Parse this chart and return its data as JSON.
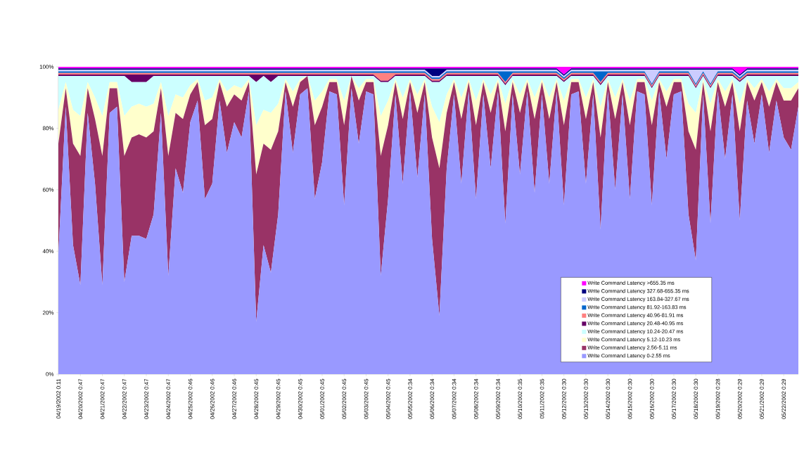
{
  "chart_data": {
    "type": "area",
    "stacked": true,
    "legend": "bottom right",
    "grid": false,
    "categories": [
      "04/19/2002 0:11",
      null,
      null,
      "04/20/2002 0:47",
      null,
      null,
      "04/21/2002 0:47",
      null,
      null,
      "04/22/2002 0:47",
      null,
      null,
      "04/23/2002 0:47",
      null,
      null,
      "04/24/2002 0:47",
      null,
      null,
      "04/25/2002 0:46",
      null,
      null,
      "04/26/2002 0:46",
      null,
      null,
      "04/27/2002 0:46",
      null,
      null,
      "04/28/2002 0:45",
      null,
      null,
      "04/29/2002 0:45",
      null,
      null,
      "04/30/2002 0:45",
      null,
      null,
      "05/01/2002 0:45",
      null,
      null,
      "05/02/2002 0:45",
      null,
      null,
      "05/03/2002 0:45",
      null,
      null,
      "05/04/2002 0:45",
      null,
      null,
      "05/05/2002 0:34",
      null,
      null,
      "05/06/2002 0:34",
      null,
      null,
      "05/07/2002 0:34",
      null,
      null,
      "05/08/2002 0:34",
      null,
      null,
      "05/09/2002 0:34",
      null,
      null,
      "05/10/2002 0:35",
      null,
      null,
      "05/11/2002 0:35",
      null,
      null,
      "05/12/2002 0:30",
      null,
      null,
      "05/13/2002 0:30",
      null,
      null,
      "05/14/2002 0:30",
      null,
      null,
      "05/15/2002 0:30",
      null,
      null,
      "05/16/2002 0:30",
      null,
      null,
      "05/17/2002 0:30",
      null,
      null,
      "05/18/2002 0:30",
      null,
      null,
      "05/19/2002 0:28",
      null,
      null,
      "05/20/2002 0:29",
      null,
      null,
      "05/21/2002 0:29",
      null,
      null,
      "05/22/2002 0:29",
      null,
      null
    ],
    "ylim": [
      0,
      100
    ],
    "yticks": [
      {
        "value": 0,
        "label": "0%"
      },
      {
        "value": 20,
        "label": "20%"
      },
      {
        "value": 40,
        "label": "40%"
      },
      {
        "value": 60,
        "label": "60%"
      },
      {
        "value": 80,
        "label": "80%"
      },
      {
        "value": 100,
        "label": "100%"
      }
    ],
    "series": [
      {
        "name": "Write Command Latency 0-2.55 ms",
        "color": "#9999ff",
        "values": [
          39,
          87,
          42,
          29,
          85,
          62,
          29,
          85,
          87,
          30,
          45,
          45,
          44,
          52,
          85,
          32,
          67,
          59,
          82,
          89,
          57,
          62,
          89,
          72,
          82,
          77,
          92,
          17,
          42,
          33,
          52,
          92,
          72,
          91,
          93,
          57,
          69,
          92,
          91,
          55,
          93,
          75,
          92,
          91,
          32,
          57,
          91,
          62,
          92,
          64,
          91,
          44,
          19,
          67,
          91,
          62,
          92,
          57,
          91,
          67,
          92,
          49,
          91,
          65,
          92,
          59,
          91,
          62,
          92,
          55,
          91,
          92,
          62,
          91,
          47,
          92,
          60,
          91,
          57,
          92,
          91,
          55,
          92,
          70,
          91,
          92,
          52,
          37,
          91,
          49,
          92,
          70,
          91,
          50,
          89,
          75,
          91,
          72,
          89,
          77,
          73,
          87
        ]
      },
      {
        "name": "Write Command Latency 2.56-5.11 ms",
        "color": "#993366",
        "values": [
          36,
          6,
          33,
          42,
          8,
          21,
          42,
          8,
          6,
          41,
          32,
          33,
          33,
          27,
          8,
          39,
          18,
          24,
          9,
          6,
          24,
          21,
          6,
          15,
          9,
          12,
          3,
          48,
          33,
          40,
          27,
          3,
          15,
          4,
          4,
          24,
          18,
          3,
          4,
          26,
          4,
          14,
          3,
          4,
          39,
          24,
          4,
          21,
          3,
          21,
          4,
          33,
          48,
          18,
          4,
          21,
          3,
          24,
          4,
          18,
          3,
          30,
          4,
          20,
          3,
          24,
          4,
          21,
          3,
          26,
          4,
          3,
          21,
          4,
          30,
          3,
          23,
          4,
          24,
          3,
          4,
          26,
          3,
          17,
          4,
          3,
          27,
          36,
          4,
          30,
          3,
          17,
          4,
          29,
          6,
          14,
          4,
          15,
          6,
          12,
          16,
          6
        ]
      },
      {
        "name": "Write Command Latency 5.12-10.23 ms",
        "color": "#ffffcc",
        "values": [
          11,
          2,
          11,
          13,
          2,
          7,
          13,
          2,
          2,
          13,
          10,
          10,
          10,
          9,
          2,
          13,
          6,
          7,
          3,
          1,
          8,
          7,
          1,
          5,
          3,
          4,
          1,
          16,
          11,
          12,
          9,
          1,
          5,
          1,
          0,
          8,
          5,
          1,
          1,
          8,
          0,
          4,
          1,
          1,
          13,
          8,
          1,
          7,
          1,
          6,
          1,
          10,
          15,
          6,
          1,
          7,
          1,
          8,
          1,
          6,
          1,
          9,
          1,
          6,
          1,
          7,
          1,
          7,
          1,
          8,
          1,
          1,
          7,
          1,
          10,
          1,
          7,
          1,
          8,
          1,
          1,
          8,
          1,
          5,
          1,
          1,
          9,
          12,
          1,
          9,
          1,
          5,
          1,
          9,
          1,
          4,
          1,
          5,
          1,
          4,
          4,
          2
        ]
      },
      {
        "name": "Write Command Latency 10.24-20.47 ms",
        "color": "#ccffff",
        "values": [
          11,
          2,
          11,
          13,
          2,
          7,
          13,
          2,
          2,
          13,
          8,
          7,
          8,
          9,
          2,
          13,
          6,
          7,
          3,
          1,
          8,
          7,
          1,
          5,
          3,
          4,
          1,
          14,
          11,
          10,
          9,
          1,
          5,
          1,
          0,
          8,
          5,
          1,
          1,
          8,
          0,
          4,
          1,
          1,
          11,
          6,
          1,
          7,
          1,
          6,
          1,
          8,
          13,
          6,
          1,
          7,
          1,
          8,
          1,
          6,
          1,
          6,
          1,
          6,
          1,
          7,
          1,
          7,
          1,
          6,
          1,
          1,
          7,
          1,
          7,
          1,
          7,
          1,
          8,
          1,
          1,
          4,
          1,
          5,
          1,
          1,
          9,
          8,
          1,
          5,
          1,
          5,
          1,
          7,
          1,
          4,
          1,
          5,
          1,
          4,
          4,
          2
        ]
      },
      {
        "name": "Write Command Latency 20.48-40.95 ms",
        "color": "#660066",
        "values": [
          0.5,
          0.5,
          0.5,
          0.5,
          0.5,
          0.5,
          0.5,
          0.5,
          0.5,
          0.5,
          2.5,
          2.5,
          2.5,
          0.5,
          0.5,
          0.5,
          0.5,
          0.5,
          0.5,
          0.5,
          0.5,
          0.5,
          0.5,
          0.5,
          0.5,
          0.5,
          0.5,
          2.5,
          0.5,
          2.5,
          0.5,
          0.5,
          0.5,
          0.5,
          0.5,
          0.5,
          0.5,
          0.5,
          0.5,
          0.5,
          0.5,
          0.5,
          0.5,
          0.5,
          0.5,
          0.5,
          0.5,
          0.5,
          0.5,
          0.5,
          0.5,
          0.5,
          0.5,
          0.5,
          0.5,
          0.5,
          0.5,
          0.5,
          0.5,
          0.5,
          0.5,
          0.5,
          0.5,
          0.5,
          0.5,
          0.5,
          0.5,
          0.5,
          0.5,
          0.5,
          0.5,
          0.5,
          0.5,
          0.5,
          0.5,
          0.5,
          0.5,
          0.5,
          0.5,
          0.5,
          0.5,
          0.5,
          0.5,
          0.5,
          0.5,
          0.5,
          0.5,
          0.5,
          0.5,
          0.5,
          0.5,
          0.5,
          0.5,
          0.5,
          0.5,
          0.5,
          0.5,
          0.5,
          0.5,
          0.5,
          0.5,
          0.5
        ]
      },
      {
        "name": "Write Command Latency 40.96-81.91 ms",
        "color": "#ff8080",
        "values": [
          0.5,
          0.5,
          0.5,
          0.5,
          0.5,
          0.5,
          0.5,
          0.5,
          0.5,
          0.5,
          0.5,
          0.5,
          0.5,
          0.5,
          0.5,
          0.5,
          0.5,
          0.5,
          0.5,
          0.5,
          0.5,
          0.5,
          0.5,
          0.5,
          0.5,
          0.5,
          0.5,
          0.5,
          0.5,
          0.5,
          0.5,
          0.5,
          0.5,
          0.5,
          0.5,
          0.5,
          0.5,
          0.5,
          0.5,
          0.5,
          0.5,
          0.5,
          0.5,
          0.5,
          2.5,
          2.5,
          0.5,
          0.5,
          0.5,
          0.5,
          0.5,
          0.5,
          0.5,
          0.5,
          0.5,
          0.5,
          0.5,
          0.5,
          0.5,
          0.5,
          0.5,
          0.5,
          0.5,
          0.5,
          0.5,
          0.5,
          0.5,
          0.5,
          0.5,
          0.5,
          0.5,
          0.5,
          0.5,
          0.5,
          0.5,
          0.5,
          0.5,
          0.5,
          0.5,
          0.5,
          0.5,
          0.5,
          0.5,
          0.5,
          0.5,
          0.5,
          0.5,
          0.5,
          0.5,
          0.5,
          0.5,
          0.5,
          0.5,
          0.5,
          0.5,
          0.5,
          0.5,
          0.5,
          0.5,
          0.5,
          0.5,
          0.5
        ]
      },
      {
        "name": "Write Command Latency 81.92-163.83 ms",
        "color": "#0066cc",
        "values": [
          0.5,
          0.5,
          0.5,
          0.5,
          0.5,
          0.5,
          0.5,
          0.5,
          0.5,
          0.5,
          0.5,
          0.5,
          0.5,
          0.5,
          0.5,
          0.5,
          0.5,
          0.5,
          0.5,
          0.5,
          0.5,
          0.5,
          0.5,
          0.5,
          0.5,
          0.5,
          0.5,
          0.5,
          0.5,
          0.5,
          0.5,
          0.5,
          0.5,
          0.5,
          0.5,
          0.5,
          0.5,
          0.5,
          0.5,
          0.5,
          0.5,
          0.5,
          0.5,
          0.5,
          0.5,
          0.5,
          0.5,
          0.5,
          0.5,
          0.5,
          0.5,
          0.5,
          0.5,
          0.5,
          0.5,
          0.5,
          0.5,
          0.5,
          0.5,
          0.5,
          0.5,
          3.5,
          0.5,
          0.5,
          0.5,
          0.5,
          0.5,
          0.5,
          0.5,
          0.5,
          0.5,
          0.5,
          0.5,
          0.5,
          3.5,
          0.5,
          0.5,
          0.5,
          0.5,
          0.5,
          0.5,
          0.5,
          0.5,
          0.5,
          0.5,
          0.5,
          0.5,
          0.5,
          0.5,
          0.5,
          0.5,
          0.5,
          0.5,
          0.5,
          0.5,
          0.5,
          0.5,
          0.5,
          0.5,
          0.5,
          0.5,
          0.5
        ]
      },
      {
        "name": "Write Command Latency 163.84-327.67 ms",
        "color": "#ccccff",
        "values": [
          0.5,
          0.5,
          0.5,
          0.5,
          0.5,
          0.5,
          0.5,
          0.5,
          0.5,
          0.5,
          0.5,
          0.5,
          0.5,
          0.5,
          0.5,
          0.5,
          0.5,
          0.5,
          0.5,
          0.5,
          0.5,
          0.5,
          0.5,
          0.5,
          0.5,
          0.5,
          0.5,
          0.5,
          0.5,
          0.5,
          0.5,
          0.5,
          0.5,
          0.5,
          0.5,
          0.5,
          0.5,
          0.5,
          0.5,
          0.5,
          0.5,
          0.5,
          0.5,
          0.5,
          0.5,
          0.5,
          0.5,
          0.5,
          0.5,
          0.5,
          0.5,
          0.5,
          0.5,
          0.5,
          0.5,
          0.5,
          0.5,
          0.5,
          0.5,
          0.5,
          0.5,
          0.5,
          0.5,
          0.5,
          0.5,
          0.5,
          0.5,
          0.5,
          0.5,
          0.5,
          0.5,
          0.5,
          0.5,
          0.5,
          0.5,
          0.5,
          0.5,
          0.5,
          0.5,
          0.5,
          0.5,
          4.5,
          0.5,
          0.5,
          0.5,
          0.5,
          0.5,
          4.5,
          0.5,
          4.5,
          0.5,
          0.5,
          0.5,
          0.5,
          0.5,
          0.5,
          0.5,
          0.5,
          0.5,
          0.5,
          0.5,
          0.5
        ]
      },
      {
        "name": "Write Command Latency 327.68-655.35 ms",
        "color": "#000080",
        "values": [
          0.5,
          0.5,
          0.5,
          0.5,
          0.5,
          0.5,
          0.5,
          0.5,
          0.5,
          0.5,
          0.5,
          0.5,
          0.5,
          0.5,
          0.5,
          0.5,
          0.5,
          0.5,
          0.5,
          0.5,
          0.5,
          0.5,
          0.5,
          0.5,
          0.5,
          0.5,
          0.5,
          0.5,
          0.5,
          0.5,
          0.5,
          0.5,
          0.5,
          0.5,
          0.5,
          0.5,
          0.5,
          0.5,
          0.5,
          0.5,
          0.5,
          0.5,
          0.5,
          0.5,
          0.5,
          0.5,
          0.5,
          0.5,
          0.5,
          0.5,
          0.5,
          2.5,
          2.5,
          0.5,
          0.5,
          0.5,
          0.5,
          0.5,
          0.5,
          0.5,
          0.5,
          0.5,
          0.5,
          0.5,
          0.5,
          0.5,
          0.5,
          0.5,
          0.5,
          0.5,
          0.5,
          0.5,
          0.5,
          0.5,
          0.5,
          0.5,
          0.5,
          0.5,
          0.5,
          0.5,
          0.5,
          0.5,
          0.5,
          0.5,
          0.5,
          0.5,
          0.5,
          0.5,
          0.5,
          0.5,
          0.5,
          0.5,
          0.5,
          0.5,
          0.5,
          0.5,
          0.5,
          0.5,
          0.5,
          0.5,
          0.5,
          0.5
        ]
      },
      {
        "name": "Write Command Latency >655.35 ms",
        "color": "#ff00ff",
        "values": [
          0.5,
          0.5,
          0.5,
          0.5,
          0.5,
          0.5,
          0.5,
          0.5,
          0.5,
          0.5,
          0.5,
          0.5,
          0.5,
          0.5,
          0.5,
          0.5,
          0.5,
          0.5,
          0.5,
          0.5,
          0.5,
          0.5,
          0.5,
          0.5,
          0.5,
          0.5,
          0.5,
          0.5,
          0.5,
          0.5,
          0.5,
          0.5,
          0.5,
          0.5,
          0.5,
          0.5,
          0.5,
          0.5,
          0.5,
          0.5,
          0.5,
          0.5,
          0.5,
          0.5,
          0.5,
          0.5,
          0.5,
          0.5,
          0.5,
          0.5,
          0.5,
          0.5,
          0.5,
          0.5,
          0.5,
          0.5,
          0.5,
          0.5,
          0.5,
          0.5,
          0.5,
          0.5,
          0.5,
          0.5,
          0.5,
          0.5,
          0.5,
          0.5,
          0.5,
          2.5,
          0.5,
          0.5,
          0.5,
          0.5,
          0.5,
          0.5,
          0.5,
          0.5,
          0.5,
          0.5,
          0.5,
          0.5,
          0.5,
          0.5,
          0.5,
          0.5,
          0.5,
          0.5,
          0.5,
          0.5,
          0.5,
          0.5,
          0.5,
          2.5,
          0.5,
          0.5,
          0.5,
          0.5,
          0.5,
          0.5,
          0.5,
          0.5
        ]
      }
    ]
  }
}
